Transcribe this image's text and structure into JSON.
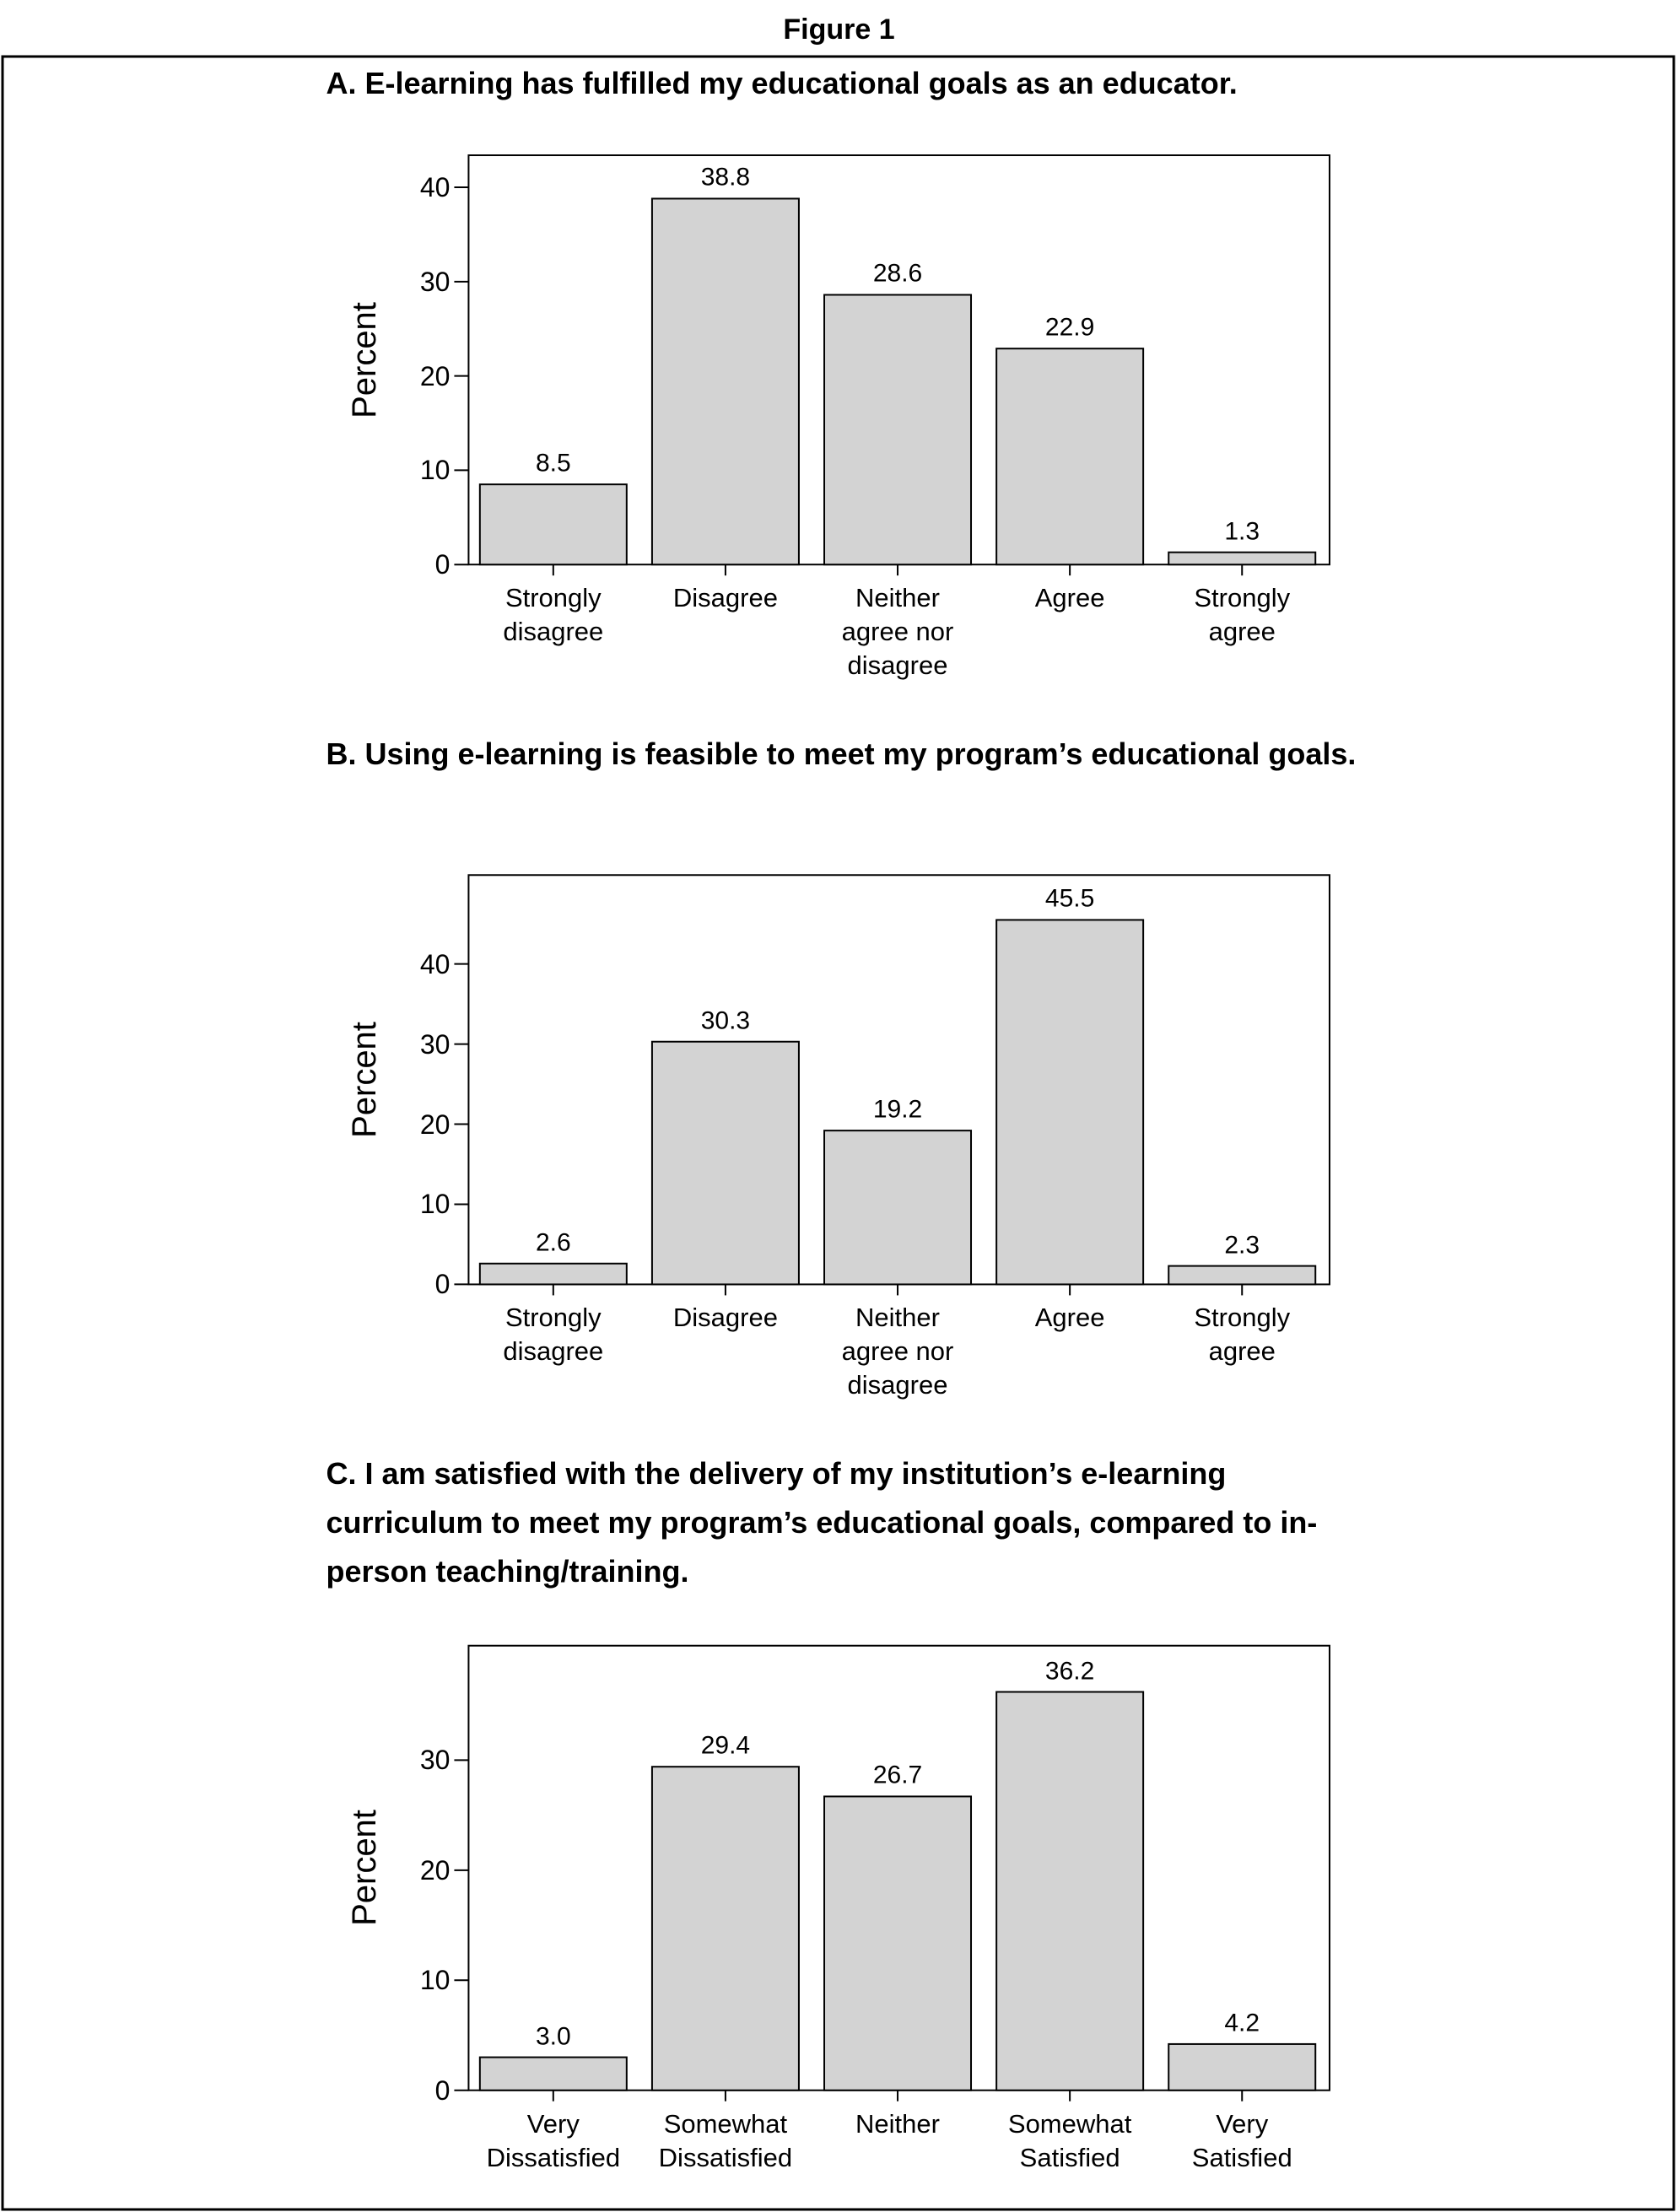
{
  "figure_title": "Figure 1",
  "chart_data": [
    {
      "type": "bar",
      "title": "A. E-learning has fulfilled my educational goals as an educator.",
      "ylabel": "Percent",
      "categories": [
        "Strongly\ndisagree",
        "Disagree",
        "Neither\nagree nor\ndisagree",
        "Agree",
        "Strongly\nagree"
      ],
      "values": [
        8.5,
        38.8,
        28.6,
        22.9,
        1.3
      ],
      "color": "#d3d3d3",
      "ylim": [
        0,
        43.4
      ],
      "yticks": [
        0,
        10,
        20,
        30,
        40
      ]
    },
    {
      "type": "bar",
      "title": "B. Using e-learning is feasible to meet my program’s educational goals.",
      "ylabel": "Percent",
      "categories": [
        "Strongly\ndisagree",
        "Disagree",
        "Neither\nagree nor\ndisagree",
        "Agree",
        "Strongly\nagree"
      ],
      "values": [
        2.6,
        30.3,
        19.2,
        45.5,
        2.3
      ],
      "color": "#d3d3d3",
      "ylim": [
        0,
        51.1
      ],
      "yticks": [
        0,
        10,
        20,
        30,
        40
      ]
    },
    {
      "type": "bar",
      "title": "C. I am satisfied with the delivery of my institution’s e-learning curriculum to meet my program’s educational goals, compared to in-person teaching/training.",
      "ylabel": "Percent",
      "categories": [
        "Very\nDissatisfied",
        "Somewhat\nDissatisfied",
        "Neither",
        "Somewhat\nSatisfied",
        "Very\nSatisfied"
      ],
      "values": [
        3.0,
        29.4,
        26.7,
        36.2,
        4.2
      ],
      "value_labels": [
        "3.0",
        "29.4",
        "26.7",
        "36.2",
        "4.2"
      ],
      "color": "#d3d3d3",
      "ylim": [
        0,
        40.4
      ],
      "yticks": [
        0,
        10,
        20,
        30
      ]
    }
  ]
}
